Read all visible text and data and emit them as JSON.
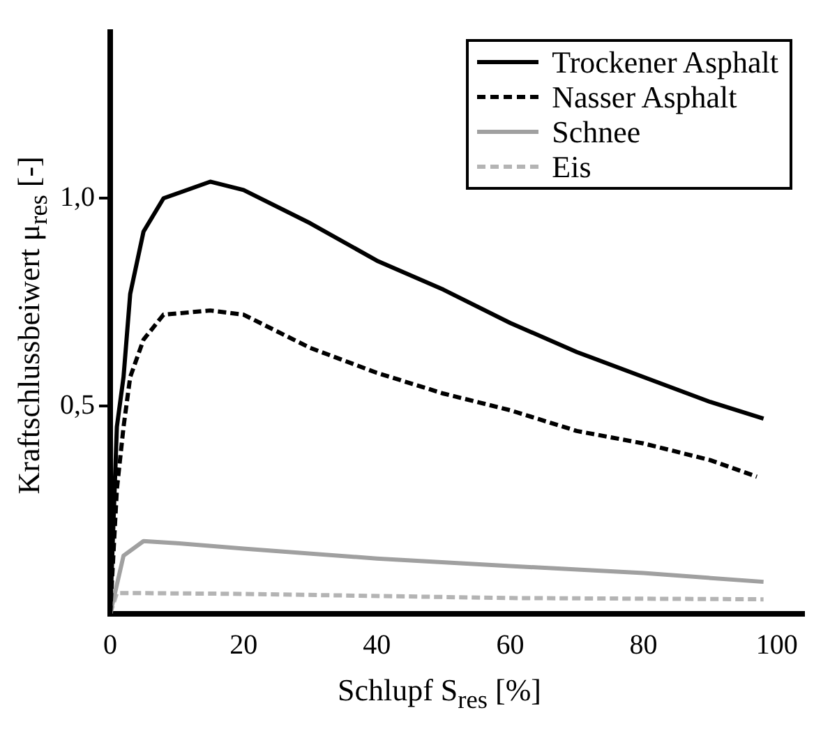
{
  "chart_data": {
    "type": "line",
    "xlabel": "Schlupf S$_{res}$ [%]",
    "ylabel": "Kraftschlussbeiwert μ$_{res}$ [-]",
    "xlim": [
      0,
      104
    ],
    "ylim": [
      0,
      1.4
    ],
    "xticks": [
      0,
      20,
      40,
      60,
      80,
      100
    ],
    "yticks": [
      {
        "value": 0.5,
        "label": "0,5"
      },
      {
        "value": 1,
        "label": "1,0"
      }
    ],
    "grid": false,
    "legend": "top right",
    "marker": "none",
    "series": [
      {
        "name": "Trockener Asphalt",
        "color": "#000000",
        "line_style": "solid",
        "x": [
          0,
          1,
          2,
          3,
          5,
          8,
          15,
          20,
          30,
          40,
          50,
          60,
          70,
          80,
          90,
          98
        ],
        "values": [
          0,
          0.45,
          0.57,
          0.77,
          0.92,
          1.0,
          1.04,
          1.02,
          0.94,
          0.85,
          0.78,
          0.7,
          0.63,
          0.57,
          0.51,
          0.47
        ]
      },
      {
        "name": "Nasser Asphalt",
        "color": "#000000",
        "line_style": "dashed",
        "x": [
          0,
          1,
          2,
          3,
          5,
          8,
          15,
          20,
          30,
          40,
          50,
          60,
          70,
          80,
          90,
          97
        ],
        "values": [
          0,
          0.3,
          0.45,
          0.57,
          0.66,
          0.72,
          0.73,
          0.72,
          0.64,
          0.58,
          0.53,
          0.49,
          0.44,
          0.41,
          0.37,
          0.33
        ]
      },
      {
        "name": "Schnee",
        "color": "#a0a0a0",
        "line_style": "solid",
        "x": [
          0,
          2,
          5,
          10,
          20,
          40,
          60,
          80,
          98
        ],
        "values": [
          0,
          0.14,
          0.175,
          0.17,
          0.157,
          0.133,
          0.115,
          0.098,
          0.077
        ]
      },
      {
        "name": "Eis",
        "color": "#b4b4b4",
        "line_style": "dashed",
        "x": [
          0,
          1,
          3,
          20,
          60,
          98
        ],
        "values": [
          0,
          0.05,
          0.05,
          0.048,
          0.038,
          0.035
        ]
      }
    ]
  }
}
